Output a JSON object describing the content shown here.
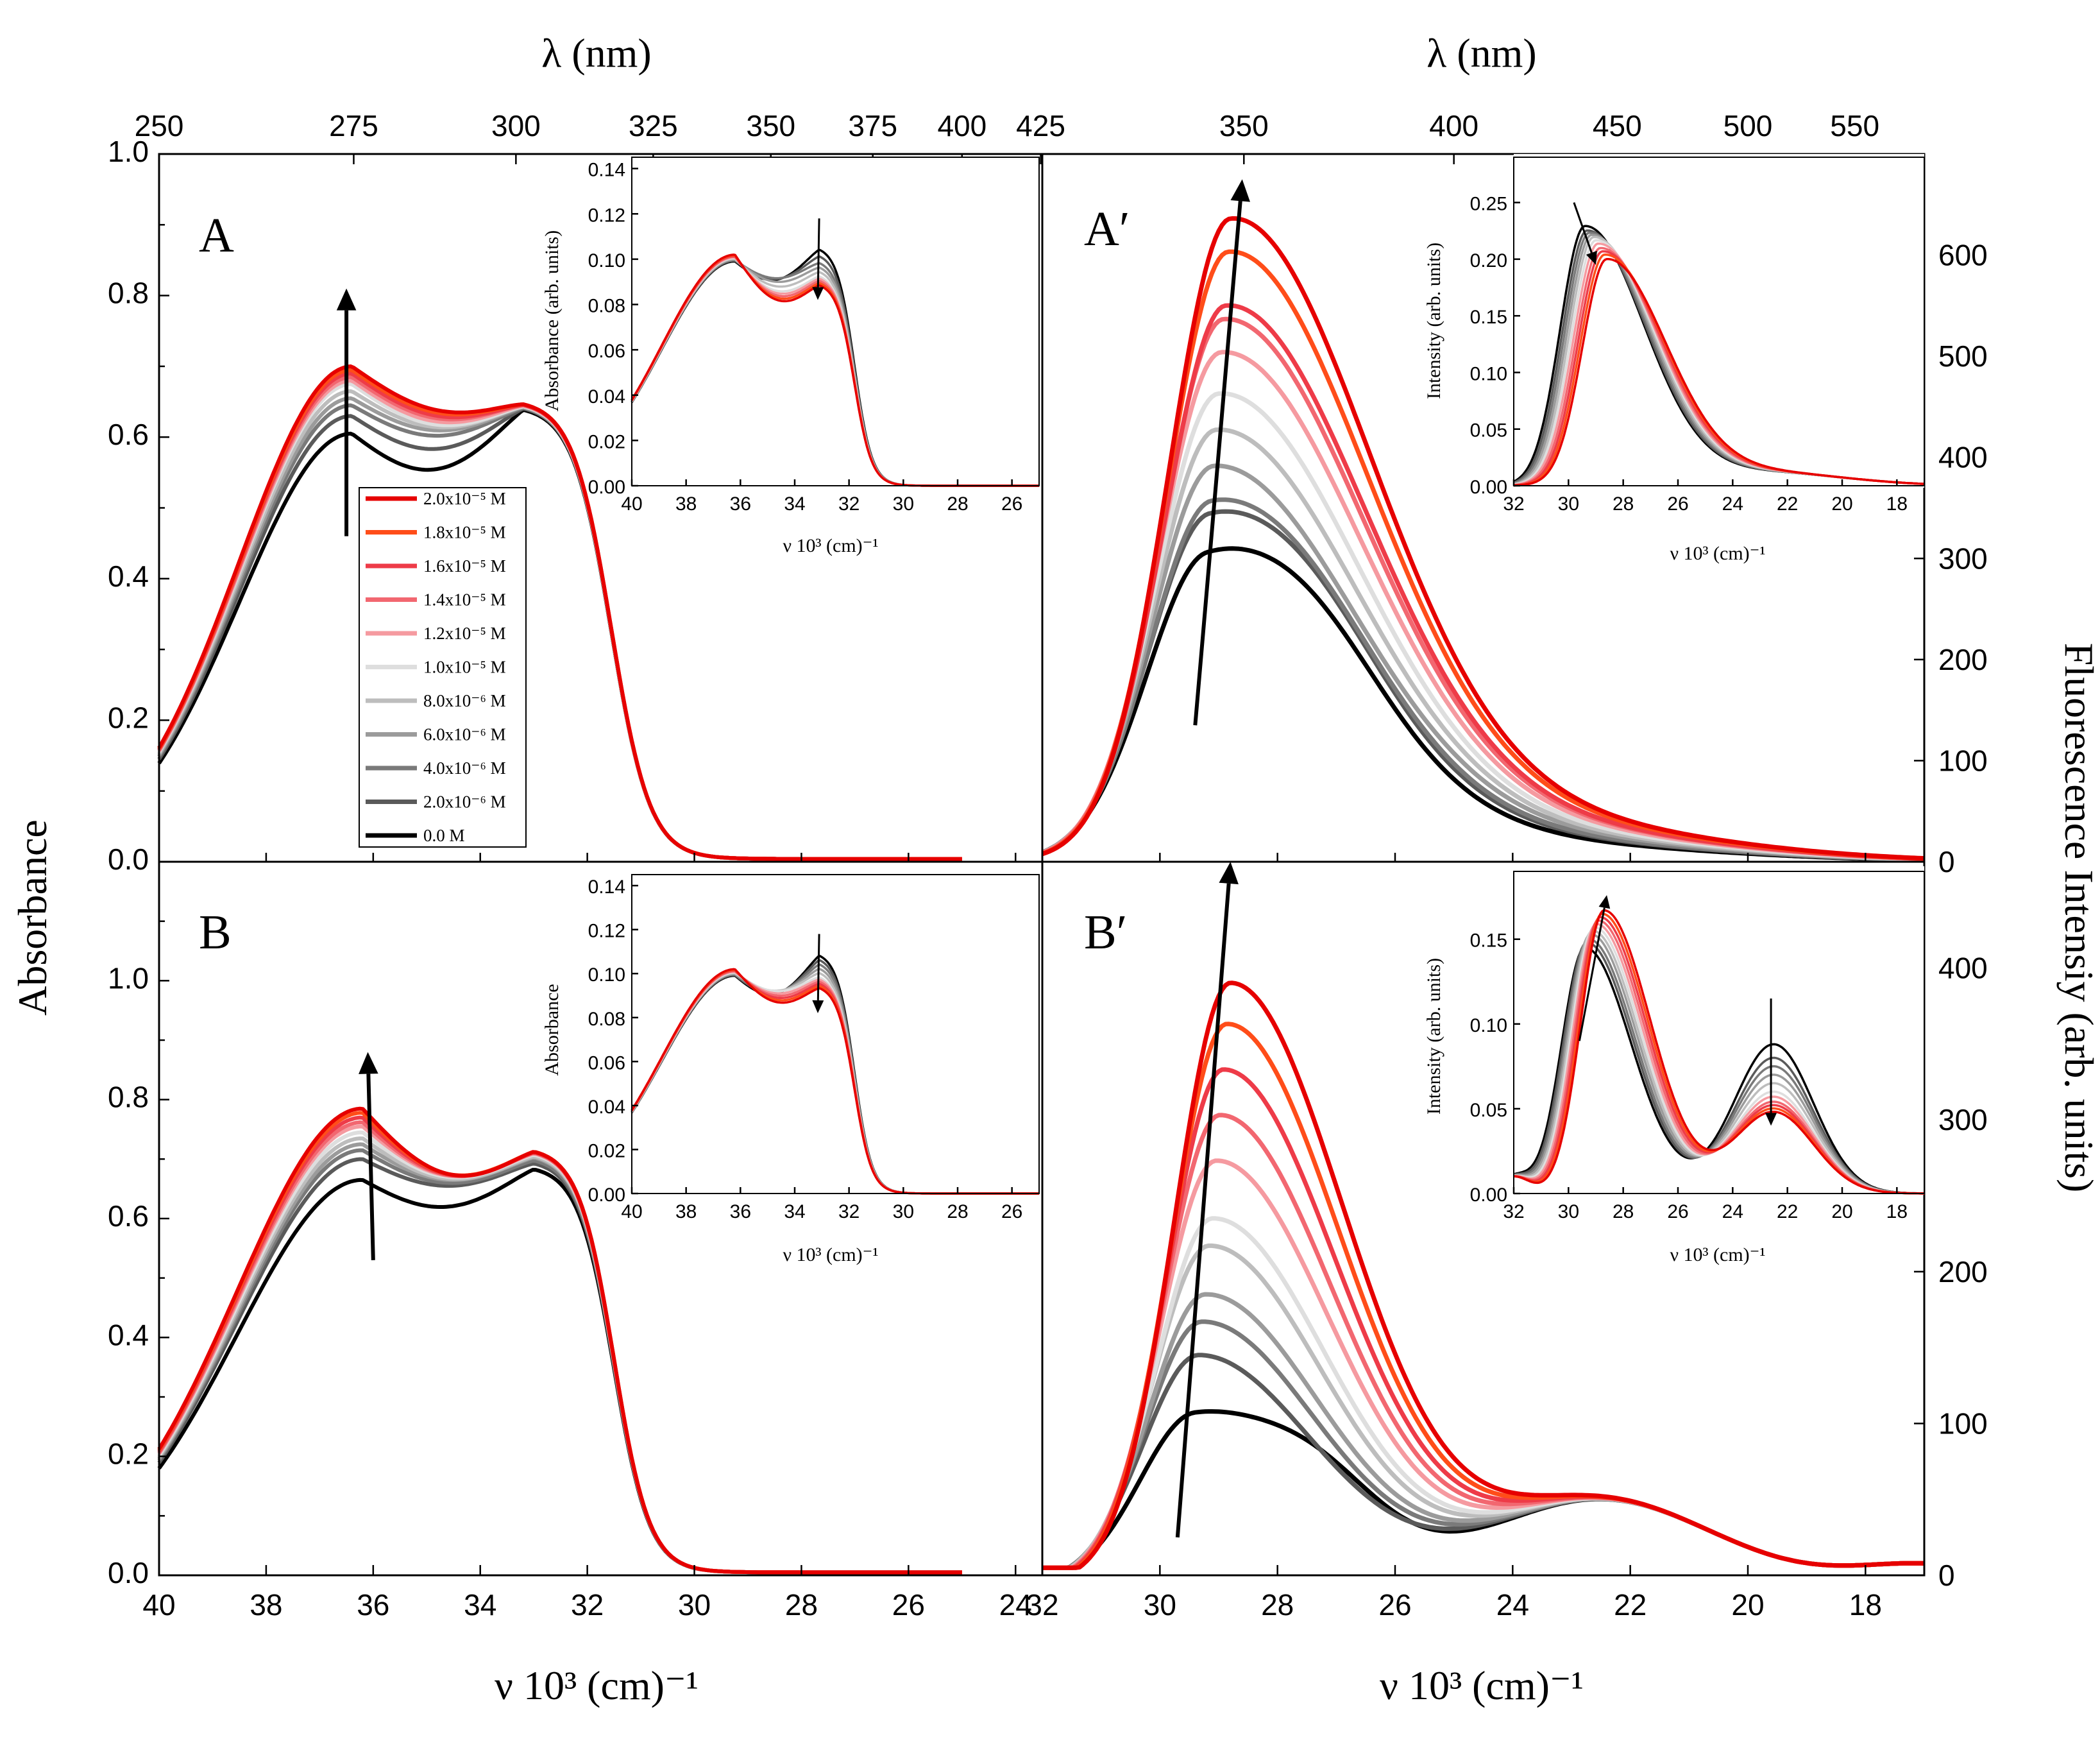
{
  "figure": {
    "left_axis_title": "Absorbance",
    "right_axis_title": "Fluorescence Intensiy (arb. units)",
    "top_axis_title": "λ (nm)",
    "bottom_axis_title": "ν 10³ (cm)⁻¹"
  },
  "legend": {
    "title": "",
    "entries": [
      {
        "label": "2.0x10⁻⁵ M",
        "color": "#e60000"
      },
      {
        "label": "1.8x10⁻⁵ M",
        "color": "#ff4d19"
      },
      {
        "label": "1.6x10⁻⁵ M",
        "color": "#ee3b48"
      },
      {
        "label": "1.4x10⁻⁵ M",
        "color": "#f26770"
      },
      {
        "label": "1.2x10⁻⁵ M",
        "color": "#f59aa0"
      },
      {
        "label": "1.0x10⁻⁵ M",
        "color": "#dedede"
      },
      {
        "label": "8.0x10⁻⁶ M",
        "color": "#bdbdbd"
      },
      {
        "label": "6.0x10⁻⁶ M",
        "color": "#9b9b9b"
      },
      {
        "label": "4.0x10⁻⁶ M",
        "color": "#7a7a7a"
      },
      {
        "label": "2.0x10⁻⁶ M",
        "color": "#5a5a5a"
      },
      {
        "label": "0.0 M",
        "color": "#000000"
      }
    ]
  },
  "chart_data": [
    {
      "id": "A",
      "type": "line",
      "panel_label": "A",
      "xlabel": "ν 10³ (cm)⁻¹",
      "ylabel": "Absorbance",
      "top_xlabel": "λ (nm)",
      "xlim": [
        40,
        23.5
      ],
      "ylim": [
        0.0,
        1.0
      ],
      "x_ticks": [],
      "y_ticks": [
        "0.0",
        "0.2",
        "0.4",
        "0.6",
        "0.8",
        "1.0"
      ],
      "top_ticks": [
        "250",
        "275",
        "300",
        "325",
        "350",
        "375",
        "400",
        "425"
      ],
      "arrow": {
        "from": [
          36.5,
          0.46
        ],
        "to": [
          36.5,
          0.81
        ]
      },
      "series_description": "11 spectra, 0.0 M (black) to 2.0x10⁻⁵ M (red)",
      "peak_values": {
        "band_36_4": [
          0.605,
          0.63,
          0.645,
          0.655,
          0.665,
          0.675,
          0.68,
          0.685,
          0.69,
          0.695,
          0.7
        ],
        "band_33_2": [
          0.645,
          0.647,
          0.648,
          0.649,
          0.65,
          0.65,
          0.651,
          0.652,
          0.652,
          0.653,
          0.653
        ]
      },
      "inset": {
        "xlabel": "ν 10³ (cm)⁻¹",
        "ylabel": "Absorbance (arb. units)",
        "xlim": [
          40,
          25
        ],
        "ylim": [
          0.0,
          0.145
        ],
        "x_ticks": [
          "40",
          "38",
          "36",
          "34",
          "32",
          "30",
          "28",
          "26"
        ],
        "y_ticks": [
          "0.00",
          "0.02",
          "0.04",
          "0.06",
          "0.08",
          "0.10",
          "0.12",
          "0.14"
        ],
        "peak2_values": [
          0.106,
          0.103,
          0.1,
          0.098,
          0.096,
          0.094,
          0.093,
          0.092,
          0.091,
          0.091,
          0.09
        ]
      }
    },
    {
      "id": "B",
      "type": "line",
      "panel_label": "B",
      "xlabel": "ν 10³ (cm)⁻¹",
      "ylabel": "Absorbance",
      "xlim": [
        40,
        23.5
      ],
      "ylim": [
        0.0,
        1.2
      ],
      "x_ticks": [
        "40",
        "38",
        "36",
        "34",
        "32",
        "30",
        "28",
        "26",
        "24"
      ],
      "y_ticks": [
        "0.0",
        "0.2",
        "0.4",
        "0.6",
        "0.8",
        "1.0"
      ],
      "arrow": {
        "from": [
          36,
          0.53
        ],
        "to": [
          36.1,
          0.88
        ]
      },
      "peak_values": {
        "band_36_2": [
          0.665,
          0.7,
          0.715,
          0.725,
          0.735,
          0.745,
          0.755,
          0.762,
          0.77,
          0.778,
          0.785
        ],
        "band_33_0": [
          0.69,
          0.7,
          0.705,
          0.71,
          0.712,
          0.715,
          0.717,
          0.718,
          0.719,
          0.72,
          0.72
        ]
      },
      "inset": {
        "xlabel": "ν 10³ (cm)⁻¹",
        "ylabel": "Absorbance",
        "xlim": [
          40,
          25
        ],
        "ylim": [
          0.0,
          0.145
        ],
        "x_ticks": [
          "40",
          "38",
          "36",
          "34",
          "32",
          "30",
          "28",
          "26"
        ],
        "y_ticks": [
          "0.00",
          "0.02",
          "0.04",
          "0.06",
          "0.08",
          "0.10",
          "0.12",
          "0.14"
        ],
        "peak2_values": [
          0.11,
          0.108,
          0.106,
          0.104,
          0.102,
          0.1,
          0.099,
          0.098,
          0.097,
          0.096,
          0.095
        ]
      }
    },
    {
      "id": "A'",
      "type": "line",
      "panel_label": "A′",
      "xlabel": "ν 10³ (cm)⁻¹",
      "ylabel": "Fluorescence Intensiy (arb. units)",
      "top_xlabel": "λ (nm)",
      "xlim": [
        32,
        17
      ],
      "ylim": [
        0,
        700
      ],
      "x_ticks": [],
      "y_ticks": [
        "0",
        "100",
        "200",
        "300",
        "400",
        "500",
        "600"
      ],
      "top_ticks": [
        "350",
        "400",
        "450",
        "500",
        "550"
      ],
      "arrow": {
        "from": [
          29.4,
          135
        ],
        "to": [
          28.6,
          675
        ]
      },
      "peak_values": [
        290,
        330,
        345,
        385,
        420,
        455,
        495,
        527,
        540,
        592,
        624
      ],
      "inset": {
        "xlabel": "ν 10³ (cm)⁻¹",
        "ylabel": "Intensity (arb. units)",
        "xlim": [
          32,
          17
        ],
        "ylim": [
          0.0,
          0.29
        ],
        "x_ticks": [
          "32",
          "30",
          "28",
          "26",
          "24",
          "22",
          "20",
          "18"
        ],
        "y_ticks": [
          "0.00",
          "0.05",
          "0.10",
          "0.15",
          "0.20",
          "0.25"
        ],
        "peak_values": [
          0.228,
          0.224,
          0.222,
          0.22,
          0.218,
          0.215,
          0.212,
          0.208,
          0.205,
          0.202,
          0.198
        ]
      }
    },
    {
      "id": "B'",
      "type": "line",
      "panel_label": "B′",
      "xlabel": "ν 10³ (cm)⁻¹",
      "ylabel": "Fluorescence Intensiy (arb. units)",
      "xlim": [
        32,
        17
      ],
      "ylim": [
        0,
        470
      ],
      "x_ticks": [
        "32",
        "30",
        "28",
        "26",
        "24",
        "22",
        "20",
        "18"
      ],
      "y_ticks": [
        "0",
        "100",
        "200",
        "300",
        "400"
      ],
      "arrow": {
        "from": [
          29.7,
          25
        ],
        "to": [
          28.8,
          470
        ]
      },
      "peak_values": [
        120,
        160,
        182,
        200,
        232,
        250,
        288,
        318,
        348,
        378,
        405
      ],
      "inset": {
        "xlabel": "ν 10³ (cm)⁻¹",
        "ylabel": "Intensity (arb. units)",
        "xlim": [
          32,
          17
        ],
        "ylim": [
          0.0,
          0.19
        ],
        "x_ticks": [
          "32",
          "30",
          "28",
          "26",
          "24",
          "22",
          "20",
          "18"
        ],
        "y_ticks": [
          "0.00",
          "0.05",
          "0.10",
          "0.15"
        ],
        "peak1_values": [
          0.145,
          0.148,
          0.15,
          0.153,
          0.155,
          0.157,
          0.159,
          0.161,
          0.163,
          0.165,
          0.167
        ],
        "peak2_values": [
          0.088,
          0.08,
          0.075,
          0.07,
          0.065,
          0.06,
          0.057,
          0.054,
          0.052,
          0.05,
          0.048
        ]
      }
    }
  ]
}
